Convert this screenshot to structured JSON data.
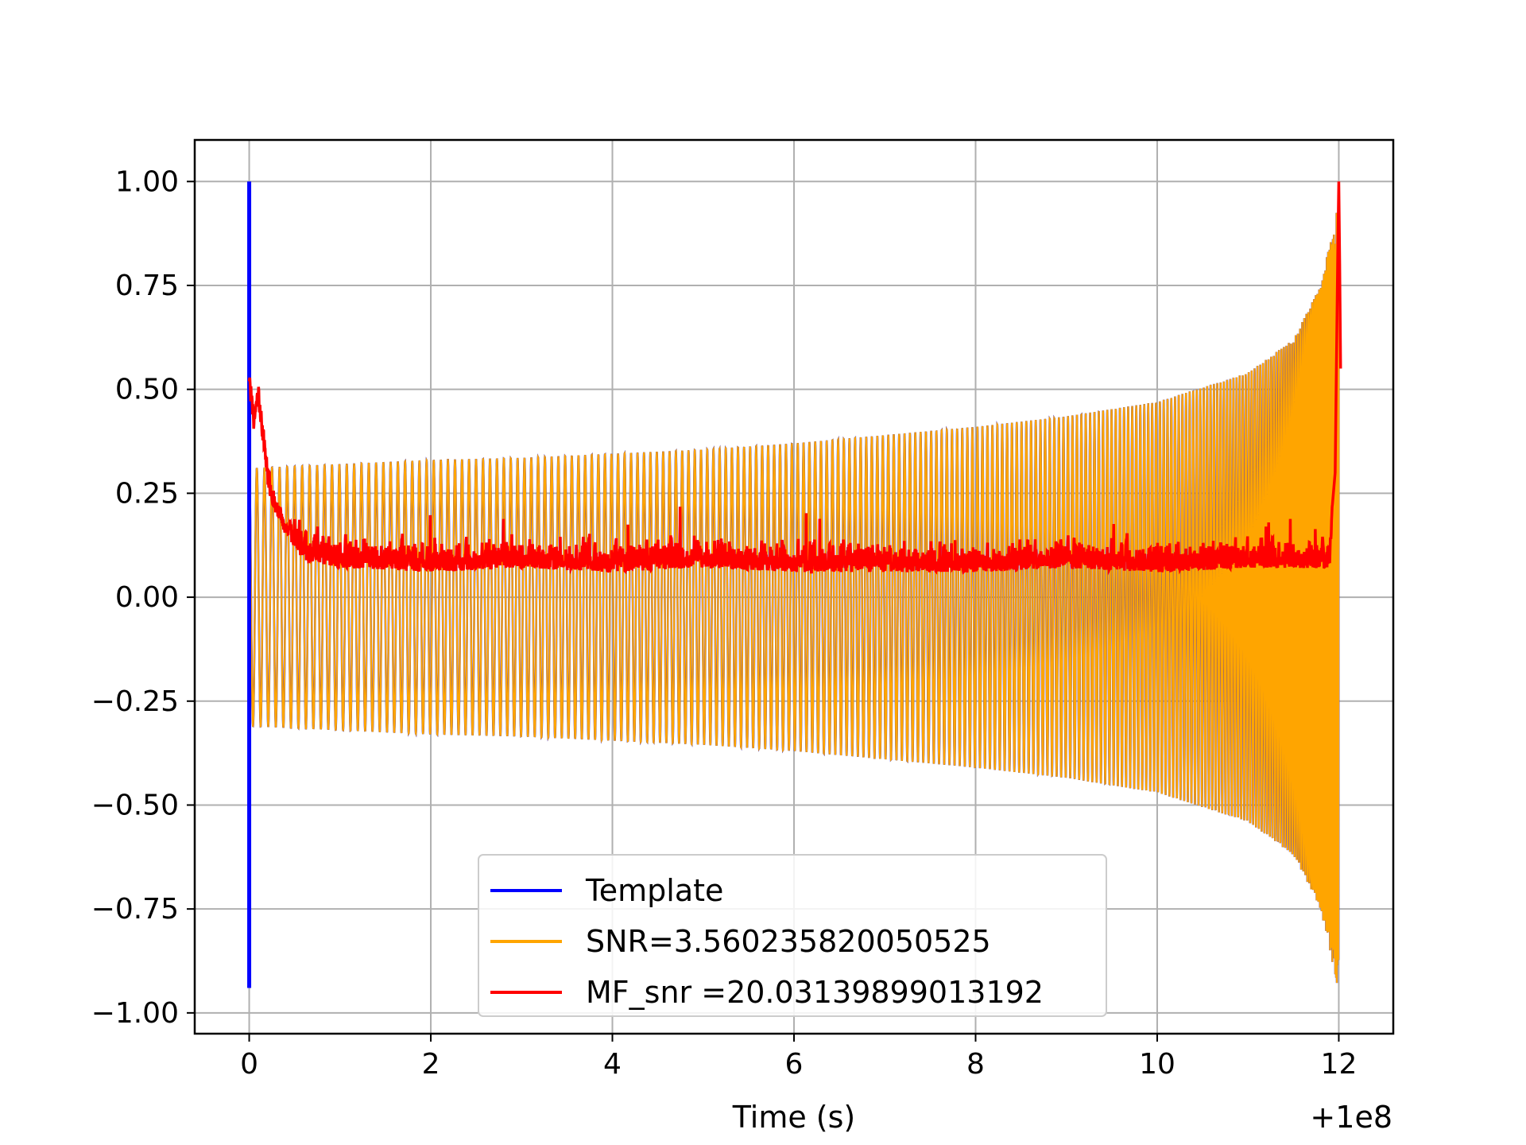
{
  "chart_data": {
    "type": "line",
    "title": "",
    "xlabel": "Time (s)",
    "ylabel": "",
    "x_offset_label": "+1e8",
    "xlim": [
      -0.6,
      12.6
    ],
    "ylim": [
      -1.05,
      1.1
    ],
    "xticks": [
      0,
      2,
      4,
      6,
      8,
      10,
      12
    ],
    "xtick_labels": [
      "0",
      "2",
      "4",
      "6",
      "8",
      "10",
      "12"
    ],
    "yticks": [
      1.0,
      0.75,
      0.5,
      0.25,
      0.0,
      -0.25,
      -0.5,
      -0.75,
      -1.0
    ],
    "ytick_labels": [
      "1.00",
      "0.75",
      "0.50",
      "0.25",
      "0.00",
      "−0.25",
      "−0.50",
      "−0.75",
      "−1.00"
    ],
    "grid": true,
    "legend_position": "lower center",
    "series": [
      {
        "name": "Template",
        "color": "#0000ff",
        "description": "spike at t=0 from -0.94 to 1.00",
        "x": [
          0,
          0,
          0
        ],
        "y": [
          0.0,
          1.0,
          -0.94
        ]
      },
      {
        "name": "SNR=3.560235820050525",
        "color": "#ffa500",
        "envelope_x": [
          0,
          1,
          2,
          3,
          4,
          5,
          6,
          7,
          8,
          9,
          10,
          11,
          11.5,
          11.8,
          12.0
        ],
        "envelope_y": [
          0.31,
          0.32,
          0.33,
          0.335,
          0.345,
          0.355,
          0.37,
          0.39,
          0.41,
          0.435,
          0.47,
          0.54,
          0.62,
          0.75,
          0.95
        ],
        "cycles": 230
      },
      {
        "name": "MF_snr =20.03139899013192",
        "color": "#ff0000",
        "x": [
          0,
          0.05,
          0.1,
          0.2,
          0.3,
          0.4,
          0.6,
          1,
          2,
          3,
          4,
          5,
          6,
          7,
          8,
          9,
          10,
          11,
          11.9,
          11.95,
          12.0,
          12.02
        ],
        "y": [
          0.53,
          0.42,
          0.49,
          0.3,
          0.2,
          0.15,
          0.09,
          0.07,
          0.06,
          0.07,
          0.06,
          0.07,
          0.06,
          0.06,
          0.06,
          0.07,
          0.06,
          0.07,
          0.07,
          0.3,
          1.0,
          0.55
        ]
      }
    ]
  }
}
